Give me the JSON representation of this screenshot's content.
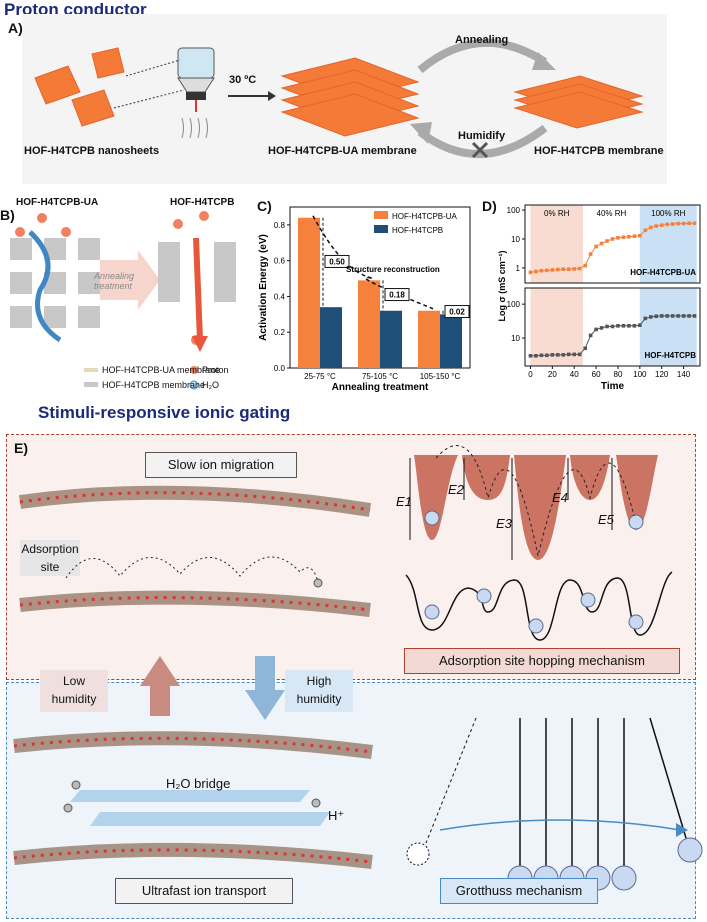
{
  "titles": {
    "proton_conductor": "Proton conductor",
    "stimuli": "Stimuli-responsive ionic gating"
  },
  "panelA": {
    "label": "A)",
    "temp": "30 ºC",
    "annealing": "Annealing",
    "humidify": "Humidify",
    "nanosheets": "HOF-H4TCPB nanosheets",
    "ua_membrane": "HOF-H4TCPB-UA membrane",
    "membrane": "HOF-H4TCPB membrane"
  },
  "panelB": {
    "label": "B)",
    "left_title": "HOF-H4TCPB-UA",
    "right_title": "HOF-H4TCPB",
    "arrow_text": "Annealing treatment",
    "legend_ua": "HOF-H4TCPB-UA membrane",
    "legend_proton": "Proton",
    "legend_m": "HOF-H4TCPB membrane",
    "legend_h2o": "H₂O"
  },
  "panelC": {
    "label": "C)",
    "annotation": "Structure reconstruction",
    "diffs": [
      "0.50",
      "0.18",
      "0.02"
    ],
    "legend_ua_color": "#f5813d",
    "legend_m_color": "#1f4e79"
  },
  "chart_data": [
    {
      "type": "bar",
      "title": "",
      "xlabel": "Annealing treatment",
      "ylabel": "Activation Energy (eV)",
      "categories": [
        "25-75 °C",
        "75-105 °C",
        "105-150 °C"
      ],
      "series": [
        {
          "name": "HOF-H4TCPB-UA",
          "values": [
            0.84,
            0.49,
            0.32
          ]
        },
        {
          "name": "HOF-H4TCPB",
          "values": [
            0.34,
            0.32,
            0.3
          ]
        }
      ],
      "ylim": [
        0.0,
        0.9
      ],
      "yticks": [
        "0.0",
        "0.2",
        "0.4",
        "0.6",
        "0.8"
      ]
    },
    {
      "type": "line",
      "title": "",
      "xlabel": "Time",
      "ylabel": "Log σ (mS cm⁻¹)",
      "xticks": [
        "0",
        "20",
        "40",
        "60",
        "80",
        "100",
        "120",
        "140"
      ],
      "regions": [
        "0% RH",
        "40% RH",
        "100% RH"
      ],
      "top": {
        "name": "HOF-H4TCPB-UA",
        "yticks": [
          "1",
          "10",
          "100"
        ],
        "x": [
          0,
          5,
          10,
          15,
          20,
          25,
          30,
          35,
          40,
          45,
          50,
          55,
          60,
          65,
          70,
          75,
          80,
          85,
          90,
          95,
          100,
          105,
          110,
          115,
          120,
          125,
          130,
          135,
          140,
          145,
          150
        ],
        "y": [
          0.7,
          0.75,
          0.8,
          0.82,
          0.85,
          0.88,
          0.9,
          0.9,
          0.92,
          0.95,
          1.2,
          3.0,
          5.5,
          7.0,
          8.5,
          10,
          11,
          11.5,
          12,
          12.5,
          13,
          20,
          25,
          28,
          30,
          32,
          33,
          34,
          34,
          35,
          35
        ]
      },
      "bottom": {
        "name": "HOF-H4TCPB",
        "yticks": [
          "10",
          "100"
        ],
        "x": [
          0,
          5,
          10,
          15,
          20,
          25,
          30,
          35,
          40,
          45,
          50,
          55,
          60,
          65,
          70,
          75,
          80,
          85,
          90,
          95,
          100,
          105,
          110,
          115,
          120,
          125,
          130,
          135,
          140,
          145,
          150
        ],
        "y": [
          3.0,
          3.0,
          3.1,
          3.1,
          3.2,
          3.2,
          3.2,
          3.3,
          3.3,
          3.3,
          5,
          12,
          18,
          20,
          22,
          22,
          23,
          23,
          23,
          23,
          24,
          38,
          42,
          44,
          45,
          45,
          45,
          45,
          45,
          45,
          45
        ]
      }
    }
  ],
  "panelD": {
    "label": "D)"
  },
  "panelE": {
    "label": "E)",
    "slow": "Slow ion migration",
    "adsorption_site": "Adsorption site",
    "energies": [
      "E1",
      "E2",
      "E3",
      "E4",
      "E5"
    ],
    "hopping": "Adsorption site hopping mechanism",
    "low": "Low humidity",
    "high": "High humidity",
    "bridge": "H₂O bridge",
    "hplus": "H⁺",
    "ultrafast": "Ultrafast ion transport",
    "grotthuss": "Grotthuss mechanism"
  }
}
